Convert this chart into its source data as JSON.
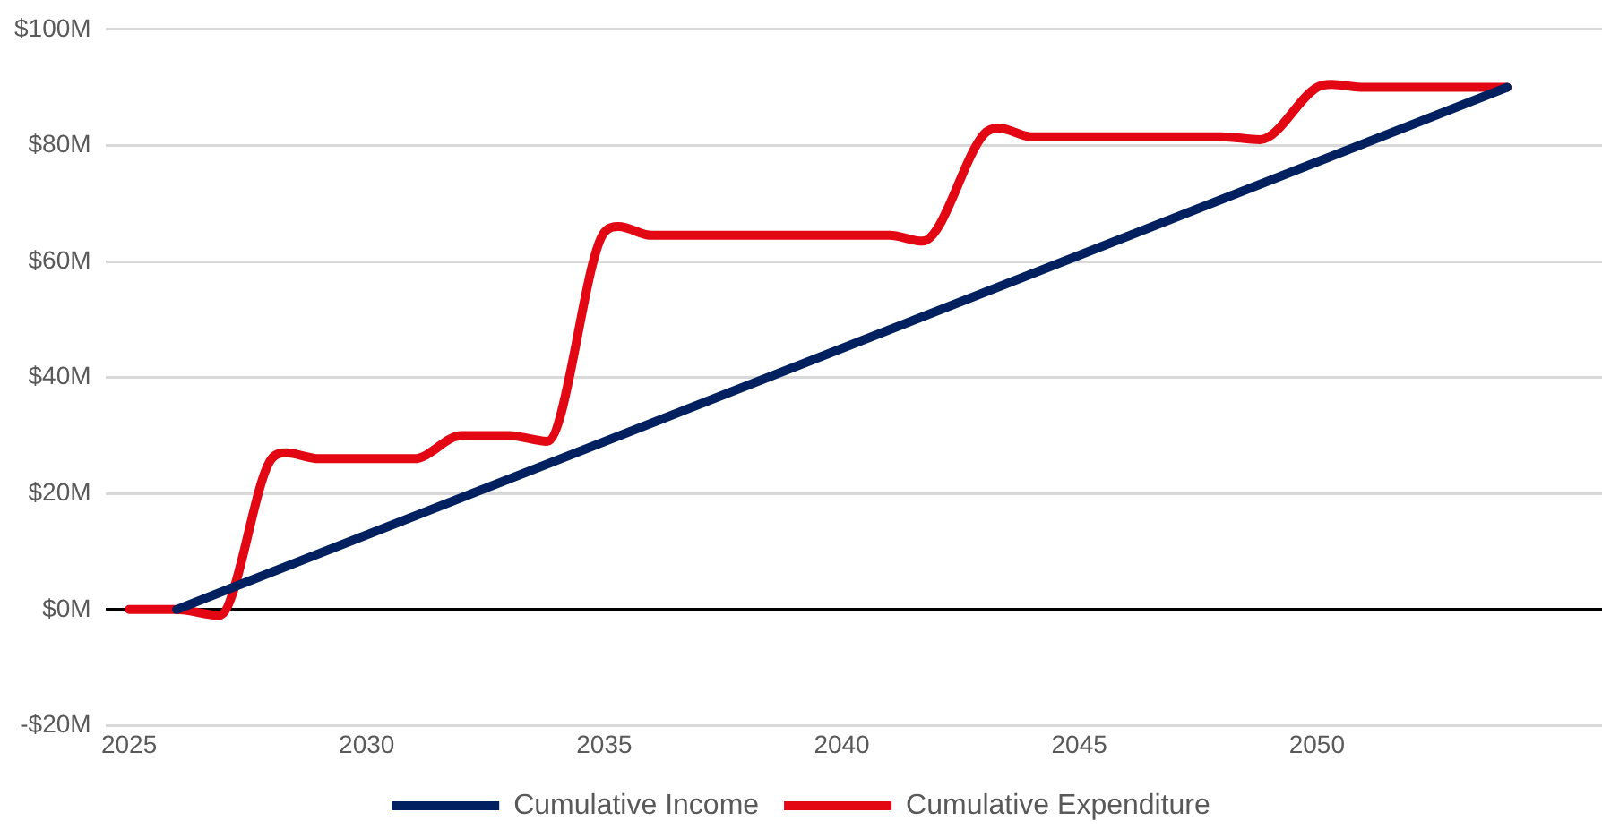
{
  "chart_data": {
    "type": "line",
    "legend": "bottom",
    "grid": "y",
    "marker": "none",
    "line_style": "solid",
    "xlim": [
      2024.5,
      2056
    ],
    "xticks": [
      2025,
      2030,
      2035,
      2040,
      2045,
      2050
    ],
    "ylim": [
      -20,
      100
    ],
    "yticks": [
      {
        "value": -20,
        "label": "-$20M"
      },
      {
        "value": 0,
        "label": "$0M"
      },
      {
        "value": 20,
        "label": "$20M"
      },
      {
        "value": 40,
        "label": "$40M"
      },
      {
        "value": 60,
        "label": "$60M"
      },
      {
        "value": 80,
        "label": "$80M"
      },
      {
        "value": 100,
        "label": "$100M"
      }
    ],
    "series": [
      {
        "name": "Cumulative Income",
        "color": "#002060",
        "x": [
          2026,
          2054
        ],
        "values": [
          0,
          90
        ]
      },
      {
        "name": "Cumulative Expenditure",
        "color": "#e30613",
        "x": [
          2025,
          2026,
          2026.9,
          2028,
          2028.3,
          2029,
          2030,
          2031,
          2032,
          2033,
          2033.8,
          2035,
          2035.3,
          2036,
          2037,
          2038,
          2039,
          2040,
          2041,
          2041.7,
          2043,
          2043.3,
          2044,
          2045,
          2046,
          2047,
          2048,
          2048.8,
          2050,
          2050.3,
          2051,
          2052,
          2053,
          2054
        ],
        "values": [
          0,
          0,
          -1,
          26,
          27,
          26,
          26,
          26,
          30,
          30,
          29,
          65,
          66,
          64.5,
          64.5,
          64.5,
          64.5,
          64.5,
          64.5,
          63.5,
          82,
          83,
          81.5,
          81.5,
          81.5,
          81.5,
          81.5,
          81,
          90,
          90.5,
          90,
          90,
          90,
          90
        ]
      }
    ]
  }
}
